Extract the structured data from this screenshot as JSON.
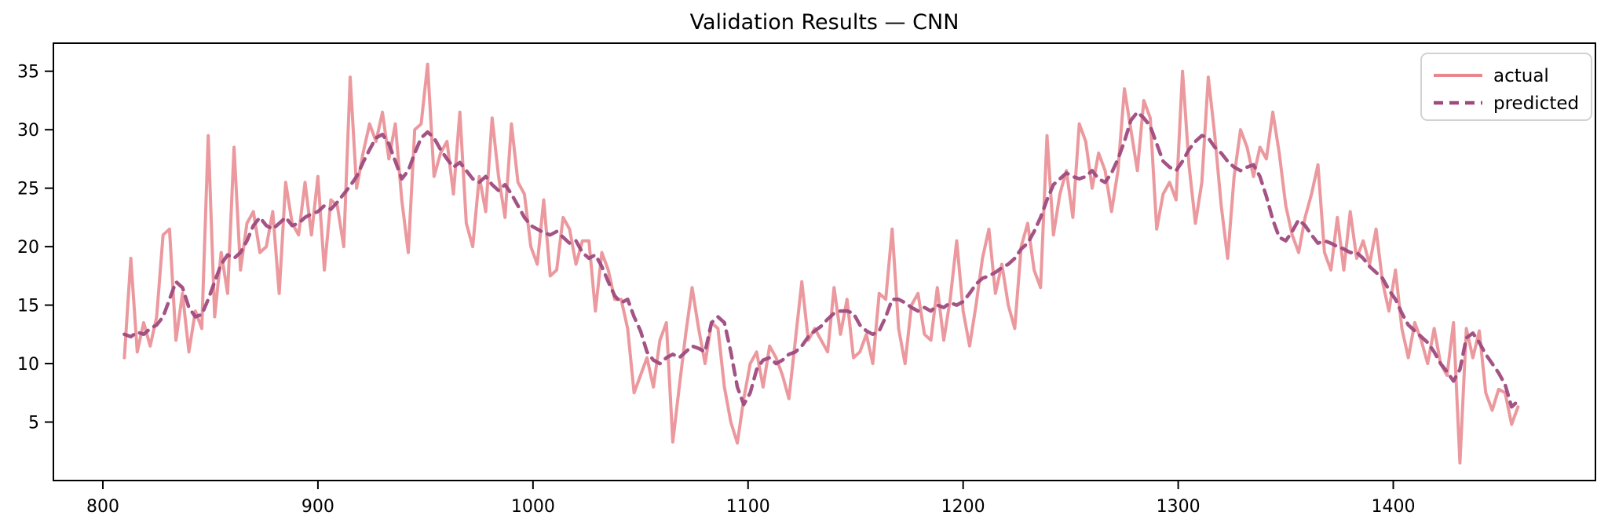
{
  "figure": {
    "title": "Validation Results — CNN"
  },
  "axes": {
    "x_tick_labels": [
      "800",
      "900",
      "1000",
      "1100",
      "1200",
      "1300",
      "1400"
    ],
    "y_tick_labels": [
      "5",
      "10",
      "15",
      "20",
      "25",
      "30",
      "35"
    ]
  },
  "legend": {
    "position": "upper right",
    "items": [
      "actual",
      "predicted"
    ]
  },
  "colors": {
    "actual": "#e8878d",
    "predicted": "#9e4a7e",
    "spine": "#000000",
    "legend_border": "#d2d2d2",
    "background": "#ffffff"
  },
  "chart_data": {
    "type": "line",
    "title": "Validation Results — CNN",
    "xlabel": "",
    "ylabel": "",
    "grid": false,
    "legend_position": "upper right",
    "xlim": [
      777,
      1494
    ],
    "ylim": [
      0,
      37.4
    ],
    "x_ticks": [
      800,
      900,
      1000,
      1100,
      1200,
      1300,
      1400
    ],
    "y_ticks": [
      5,
      10,
      15,
      20,
      25,
      30,
      35
    ],
    "x": [
      810,
      813,
      816,
      819,
      822,
      825,
      828,
      831,
      834,
      837,
      840,
      843,
      846,
      849,
      852,
      855,
      858,
      861,
      864,
      867,
      870,
      873,
      876,
      879,
      882,
      885,
      888,
      891,
      894,
      897,
      900,
      903,
      906,
      909,
      912,
      915,
      918,
      921,
      924,
      927,
      930,
      933,
      936,
      939,
      942,
      945,
      948,
      951,
      954,
      957,
      960,
      963,
      966,
      969,
      972,
      975,
      978,
      981,
      984,
      987,
      990,
      993,
      996,
      999,
      1002,
      1005,
      1008,
      1011,
      1014,
      1017,
      1020,
      1023,
      1026,
      1029,
      1032,
      1035,
      1038,
      1041,
      1044,
      1047,
      1050,
      1053,
      1056,
      1059,
      1062,
      1065,
      1068,
      1071,
      1074,
      1077,
      1080,
      1083,
      1086,
      1089,
      1092,
      1095,
      1098,
      1101,
      1104,
      1107,
      1110,
      1113,
      1116,
      1119,
      1122,
      1125,
      1128,
      1131,
      1134,
      1137,
      1140,
      1143,
      1146,
      1149,
      1152,
      1155,
      1158,
      1161,
      1164,
      1167,
      1170,
      1173,
      1176,
      1179,
      1182,
      1185,
      1188,
      1191,
      1194,
      1197,
      1200,
      1203,
      1206,
      1209,
      1212,
      1215,
      1218,
      1221,
      1224,
      1227,
      1230,
      1233,
      1236,
      1239,
      1242,
      1245,
      1248,
      1251,
      1254,
      1257,
      1260,
      1263,
      1266,
      1269,
      1272,
      1275,
      1278,
      1281,
      1284,
      1287,
      1290,
      1293,
      1296,
      1299,
      1302,
      1305,
      1308,
      1311,
      1314,
      1317,
      1320,
      1323,
      1326,
      1329,
      1332,
      1335,
      1338,
      1341,
      1344,
      1347,
      1350,
      1353,
      1356,
      1359,
      1362,
      1365,
      1368,
      1371,
      1374,
      1377,
      1380,
      1383,
      1386,
      1389,
      1392,
      1395,
      1398,
      1401,
      1404,
      1407,
      1410,
      1413,
      1416,
      1419,
      1422,
      1425,
      1428,
      1431,
      1434,
      1437,
      1440,
      1443,
      1446,
      1449,
      1452,
      1455,
      1458
    ],
    "series": [
      {
        "name": "actual",
        "style": "solid",
        "color": "#e8878d",
        "values": [
          10.5,
          19,
          11,
          13.5,
          11.5,
          14,
          21,
          21.5,
          12,
          16,
          11,
          14.5,
          13,
          29.5,
          14,
          19.5,
          16,
          28.5,
          18,
          22,
          23,
          19.5,
          20,
          23,
          16,
          25.5,
          22,
          21,
          25.5,
          21,
          26,
          18,
          24,
          23.5,
          20,
          34.5,
          25,
          28,
          30.5,
          29,
          31.5,
          27.5,
          30.5,
          24,
          19.5,
          30,
          30.5,
          35.6,
          26,
          28,
          29,
          24.5,
          31.5,
          22,
          20,
          26,
          23,
          31,
          26,
          22.5,
          30.5,
          25.5,
          24.5,
          20,
          18.5,
          24,
          17.5,
          18,
          22.5,
          21.5,
          18.5,
          20.5,
          20.5,
          14.5,
          19.5,
          18,
          15.5,
          15.5,
          13,
          7.5,
          9,
          10.5,
          8,
          12,
          13.5,
          3.3,
          8,
          12.5,
          16.5,
          13,
          10,
          13.5,
          13,
          8,
          5,
          3.2,
          7,
          10,
          11,
          8,
          11.5,
          10.5,
          9,
          7,
          12,
          17,
          12,
          13,
          12,
          11,
          16.5,
          12.5,
          15.5,
          10.5,
          11,
          12.5,
          10,
          16,
          15.5,
          21.5,
          13,
          10,
          15,
          16,
          12.5,
          12,
          16.5,
          12,
          15.5,
          20.5,
          14.5,
          11.5,
          15,
          19,
          21.5,
          16,
          18.5,
          15,
          13,
          20,
          22,
          18,
          16.5,
          29.5,
          21,
          24.5,
          26.5,
          22.5,
          30.5,
          29,
          25,
          28,
          26.5,
          23,
          26.5,
          33.5,
          30,
          26.5,
          32.5,
          31,
          21.5,
          24.5,
          25.5,
          24,
          35,
          27,
          22,
          25.5,
          34.5,
          29.5,
          23.5,
          19,
          26,
          30,
          28.5,
          26,
          28.5,
          27.5,
          31.5,
          28,
          23.5,
          21,
          19.5,
          22.5,
          24.5,
          27,
          19.5,
          18,
          22.5,
          18,
          23,
          19,
          20.5,
          18.5,
          21.5,
          17,
          14.5,
          18,
          13,
          10.5,
          13.5,
          12,
          10,
          13,
          10,
          9,
          13.5,
          1.5,
          13,
          10.5,
          12.8,
          7.5,
          6,
          7.8,
          7.5,
          4.8,
          6.3
        ]
      },
      {
        "name": "predicted",
        "style": "dashed",
        "color": "#9e4a7e",
        "values": [
          12.5,
          12.3,
          12.7,
          12.5,
          13,
          13.3,
          14,
          15.5,
          17,
          16.5,
          14.8,
          14,
          14.2,
          15.5,
          17,
          18.5,
          19.3,
          19,
          19.5,
          20.5,
          21.8,
          22.5,
          21.8,
          21.5,
          22,
          22.5,
          21.8,
          22,
          22.5,
          22.8,
          23,
          23.5,
          23.2,
          23.8,
          24.5,
          25.2,
          26,
          27.2,
          28.3,
          29.3,
          29.6,
          28.8,
          27.3,
          25.8,
          26.5,
          28,
          29.3,
          29.8,
          29.3,
          28.3,
          27.5,
          26.8,
          27.2,
          26.5,
          25.8,
          25.5,
          26,
          25.3,
          24.8,
          25.3,
          24.5,
          23.5,
          22.5,
          21.8,
          21.5,
          21.2,
          21,
          21.3,
          20.8,
          20.3,
          20.5,
          19.5,
          19,
          19.3,
          18.3,
          17,
          15.8,
          15.2,
          15.5,
          14,
          12.8,
          11,
          10.3,
          10,
          10.5,
          10.8,
          10.5,
          11,
          11.5,
          11.3,
          11,
          13.5,
          14,
          13.5,
          11,
          8,
          6.5,
          7.5,
          9.5,
          10.3,
          10.5,
          10,
          10.3,
          10.8,
          11,
          11.5,
          12.3,
          12.8,
          13.2,
          13.8,
          14.3,
          14.5,
          14.5,
          14.3,
          13.3,
          12.8,
          12.5,
          12.8,
          14,
          15.5,
          15.5,
          15.2,
          14.8,
          14.5,
          14.8,
          14.5,
          15,
          14.8,
          15.2,
          15,
          15.3,
          16,
          16.8,
          17.3,
          17.5,
          17.8,
          18.2,
          18.5,
          19,
          19.8,
          20.3,
          21.3,
          22.5,
          24,
          25.3,
          25.8,
          26.3,
          26,
          25.8,
          26,
          26.5,
          25.8,
          25.5,
          26.3,
          27.5,
          29,
          30.8,
          31.5,
          31,
          30.3,
          28.8,
          27.3,
          26.8,
          26.5,
          27.3,
          28.3,
          29,
          29.5,
          29.3,
          28.5,
          28,
          27.3,
          26.8,
          26.5,
          26.8,
          27,
          26,
          24.3,
          22.3,
          20.8,
          20.5,
          21.3,
          22.3,
          21.8,
          21,
          20.3,
          20.5,
          20.3,
          20,
          19.8,
          19.5,
          19.5,
          19,
          18.3,
          17.8,
          17.3,
          16.3,
          15.5,
          14.3,
          13.3,
          12.8,
          12.3,
          11.8,
          11,
          10,
          9.3,
          8.5,
          9.5,
          12.2,
          12.6,
          11.8,
          10.8,
          10,
          9.2,
          8.2,
          6.3,
          6.8
        ]
      }
    ]
  }
}
